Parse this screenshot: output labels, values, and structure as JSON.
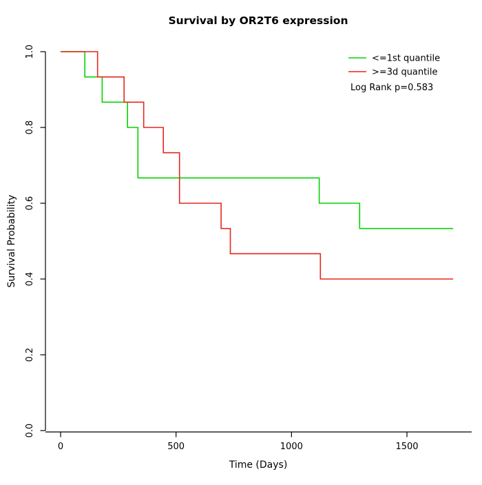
{
  "title": "Survival by OR2T6 expression",
  "x_axis": {
    "label": "Time (Days)",
    "tick_labels": [
      "0",
      "500",
      "1000",
      "1500"
    ],
    "tick_values": [
      0,
      500,
      1000,
      1500
    ]
  },
  "y_axis": {
    "label": "Survival Probability",
    "tick_labels": [
      "0.0",
      "0.2",
      "0.4",
      "0.6",
      "0.8",
      "1.0"
    ],
    "tick_values": [
      0,
      0.2,
      0.4,
      0.6,
      0.8,
      1.0
    ]
  },
  "legend": {
    "entries": [
      {
        "label": "<=1st quantile",
        "color": "#00d400"
      },
      {
        "label": ">=3d quantile",
        "color": "#e5261b"
      }
    ],
    "note": "Log Rank p=0.583"
  },
  "chart_data": {
    "type": "line",
    "subtype": "kaplan-meier step curves",
    "title": "Survival by OR2T6 expression",
    "xlabel": "Time (Days)",
    "ylabel": "Survival Probability",
    "xlim": [
      0,
      1750
    ],
    "ylim": [
      0,
      1.0
    ],
    "grid": false,
    "legend_position": "top-right",
    "annotation": "Log Rank p=0.583",
    "series": [
      {
        "name": "<=1st quantile",
        "color": "#00d400",
        "end_time": 1700,
        "points": [
          [
            0,
            1.0
          ],
          [
            105,
            0.9333
          ],
          [
            180,
            0.8667
          ],
          [
            290,
            0.8
          ],
          [
            335,
            0.6667
          ],
          [
            1120,
            0.6
          ],
          [
            1295,
            0.5333
          ]
        ]
      },
      {
        "name": ">=3d quantile",
        "color": "#e5261b",
        "end_time": 1700,
        "points": [
          [
            0,
            1.0
          ],
          [
            160,
            0.9333
          ],
          [
            275,
            0.8667
          ],
          [
            360,
            0.8
          ],
          [
            445,
            0.7333
          ],
          [
            515,
            0.6
          ],
          [
            695,
            0.5333
          ],
          [
            735,
            0.4667
          ],
          [
            1125,
            0.4
          ]
        ]
      }
    ]
  }
}
